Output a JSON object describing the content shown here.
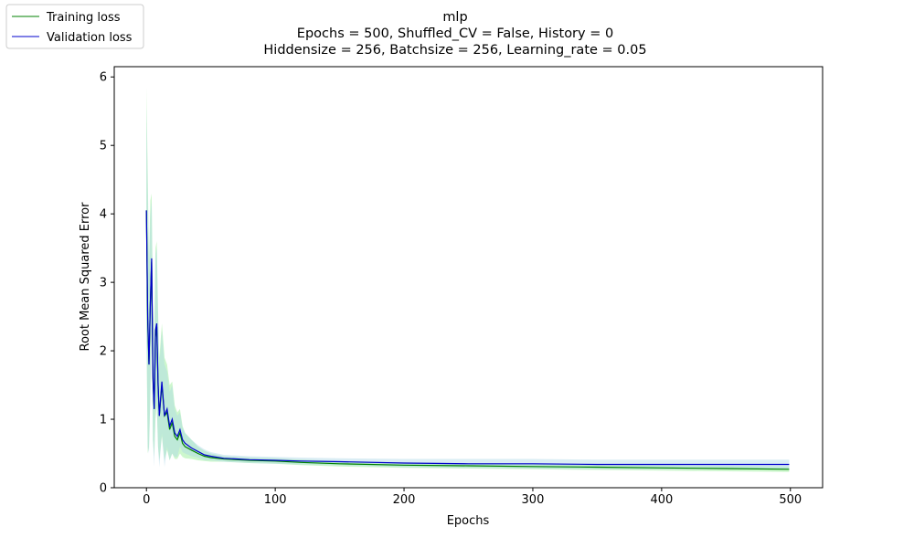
{
  "chart_data": {
    "type": "line",
    "title_lines": [
      "mlp",
      "Epochs = 500, Shuffled_CV = False, History = 0",
      "Hiddensize = 256, Batchsize = 256, Learning_rate = 0.05"
    ],
    "xlabel": "Epochs",
    "ylabel": "Root Mean Squared Error",
    "xlim": [
      -25,
      525
    ],
    "ylim": [
      0,
      6.15
    ],
    "xticks": [
      0,
      100,
      200,
      300,
      400,
      500
    ],
    "yticks": [
      0,
      1,
      2,
      3,
      4,
      5,
      6
    ],
    "grid": false,
    "legend": {
      "placement": "upper-left"
    },
    "series": [
      {
        "name": "Training loss",
        "color": "#008000",
        "band_color": "#90ee90",
        "x": [
          0,
          1,
          2,
          3,
          4,
          5,
          6,
          7,
          8,
          9,
          10,
          12,
          14,
          16,
          18,
          20,
          22,
          24,
          26,
          28,
          30,
          35,
          40,
          45,
          50,
          60,
          70,
          80,
          100,
          120,
          150,
          200,
          250,
          300,
          350,
          400,
          450,
          499
        ],
        "y": [
          4.05,
          2.4,
          1.8,
          2.7,
          3.3,
          1.6,
          1.15,
          2.2,
          2.35,
          1.5,
          1.05,
          1.5,
          1.05,
          1.1,
          0.85,
          0.95,
          0.75,
          0.7,
          0.8,
          0.65,
          0.6,
          0.55,
          0.5,
          0.46,
          0.44,
          0.42,
          0.41,
          0.4,
          0.39,
          0.37,
          0.35,
          0.33,
          0.32,
          0.31,
          0.3,
          0.29,
          0.28,
          0.27
        ],
        "band": [
          5.85,
          4.6,
          3.3,
          4.2,
          4.3,
          2.7,
          2.1,
          3.5,
          3.6,
          2.6,
          1.9,
          2.4,
          1.9,
          1.8,
          1.5,
          1.55,
          1.2,
          1.1,
          1.15,
          0.9,
          0.8,
          0.7,
          0.6,
          0.54,
          0.5,
          0.46,
          0.45,
          0.44,
          0.43,
          0.41,
          0.39,
          0.37,
          0.36,
          0.35,
          0.34,
          0.33,
          0.32,
          0.31
        ],
        "band_low": [
          2.3,
          0.5,
          0.6,
          1.3,
          2.3,
          0.7,
          0.45,
          1.0,
          1.2,
          0.6,
          0.4,
          0.75,
          0.4,
          0.55,
          0.4,
          0.5,
          0.42,
          0.42,
          0.5,
          0.45,
          0.43,
          0.42,
          0.4,
          0.39,
          0.38,
          0.38,
          0.37,
          0.36,
          0.35,
          0.33,
          0.31,
          0.29,
          0.28,
          0.27,
          0.26,
          0.25,
          0.24,
          0.23
        ]
      },
      {
        "name": "Validation loss",
        "color": "#0000cc",
        "band_color": "#add8e6",
        "x": [
          0,
          1,
          2,
          3,
          4,
          5,
          6,
          7,
          8,
          9,
          10,
          12,
          14,
          16,
          18,
          20,
          22,
          24,
          26,
          28,
          30,
          35,
          40,
          45,
          50,
          60,
          70,
          80,
          100,
          120,
          150,
          200,
          250,
          300,
          350,
          400,
          450,
          499
        ],
        "y": [
          4.05,
          2.5,
          1.8,
          2.7,
          3.35,
          1.65,
          1.15,
          2.3,
          2.4,
          1.55,
          1.05,
          1.55,
          1.05,
          1.15,
          0.9,
          1.0,
          0.8,
          0.75,
          0.85,
          0.7,
          0.65,
          0.58,
          0.53,
          0.48,
          0.46,
          0.43,
          0.42,
          0.41,
          0.4,
          0.39,
          0.38,
          0.36,
          0.35,
          0.35,
          0.34,
          0.34,
          0.34,
          0.34
        ],
        "band": [
          5.6,
          4.4,
          3.1,
          4.0,
          4.2,
          2.6,
          2.0,
          3.4,
          3.5,
          2.5,
          1.8,
          2.3,
          1.8,
          1.7,
          1.4,
          1.5,
          1.15,
          1.05,
          1.1,
          0.88,
          0.8,
          0.7,
          0.62,
          0.56,
          0.52,
          0.48,
          0.47,
          0.46,
          0.45,
          0.44,
          0.43,
          0.42,
          0.42,
          0.42,
          0.41,
          0.41,
          0.41,
          0.41
        ],
        "band_low": [
          2.5,
          0.6,
          0.5,
          1.4,
          2.5,
          0.7,
          0.3,
          1.2,
          1.3,
          0.6,
          0.3,
          0.8,
          0.3,
          0.6,
          0.4,
          0.5,
          0.45,
          0.45,
          0.6,
          0.52,
          0.5,
          0.46,
          0.44,
          0.4,
          0.4,
          0.38,
          0.37,
          0.36,
          0.35,
          0.34,
          0.33,
          0.3,
          0.29,
          0.28,
          0.27,
          0.27,
          0.27,
          0.27
        ]
      }
    ]
  }
}
